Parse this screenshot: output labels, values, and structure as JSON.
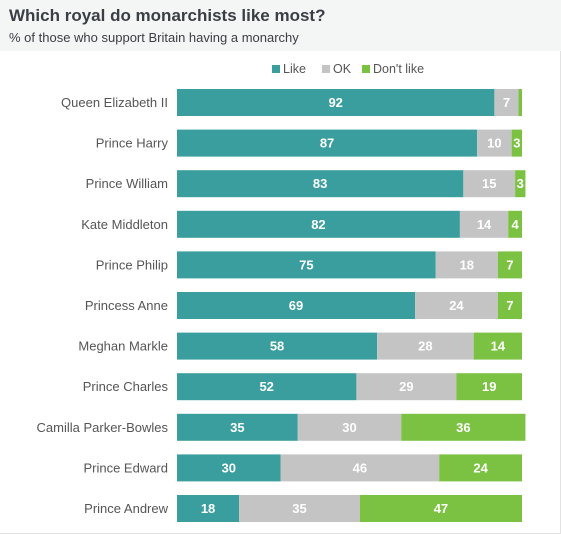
{
  "header": {
    "title": "Which royal do monarchists like most?",
    "subtitle": "% of those who support Britain having a monarchy"
  },
  "colors": {
    "like": "#3a9e9e",
    "ok": "#c4c4c4",
    "dont_like": "#7cc242",
    "label_text": "#555555",
    "bar_text": "#ffffff"
  },
  "chart_data": {
    "type": "bar",
    "orientation": "horizontal",
    "stacked": true,
    "title": "Which royal do monarchists like most?",
    "subtitle": "% of those who support Britain having a monarchy",
    "legend_position": "top",
    "xlim": [
      0,
      100
    ],
    "categories": [
      "Queen Elizabeth II",
      "Prince Harry",
      "Prince William",
      "Kate Middleton",
      "Prince Philip",
      "Princess Anne",
      "Meghan Markle",
      "Prince Charles",
      "Camilla Parker-Bowles",
      "Prince Edward",
      "Prince Andrew"
    ],
    "series": [
      {
        "name": "Like",
        "color": "#3a9e9e",
        "values": [
          92,
          87,
          83,
          82,
          75,
          69,
          58,
          52,
          35,
          30,
          18
        ]
      },
      {
        "name": "OK",
        "color": "#c4c4c4",
        "values": [
          7,
          10,
          15,
          14,
          18,
          24,
          28,
          29,
          30,
          46,
          35
        ]
      },
      {
        "name": "Don't like",
        "color": "#7cc242",
        "values": [
          1,
          3,
          3,
          4,
          7,
          7,
          14,
          19,
          36,
          24,
          47
        ]
      }
    ],
    "data_labels": [
      [
        "92",
        "7",
        ""
      ],
      [
        "87",
        "10",
        "3"
      ],
      [
        "83",
        "15",
        "3"
      ],
      [
        "82",
        "14",
        "4"
      ],
      [
        "75",
        "18",
        "7"
      ],
      [
        "69",
        "24",
        "7"
      ],
      [
        "58",
        "28",
        "14"
      ],
      [
        "52",
        "29",
        "19"
      ],
      [
        "35",
        "30",
        "36"
      ],
      [
        "30",
        "46",
        "24"
      ],
      [
        "18",
        "35",
        "47"
      ]
    ]
  }
}
